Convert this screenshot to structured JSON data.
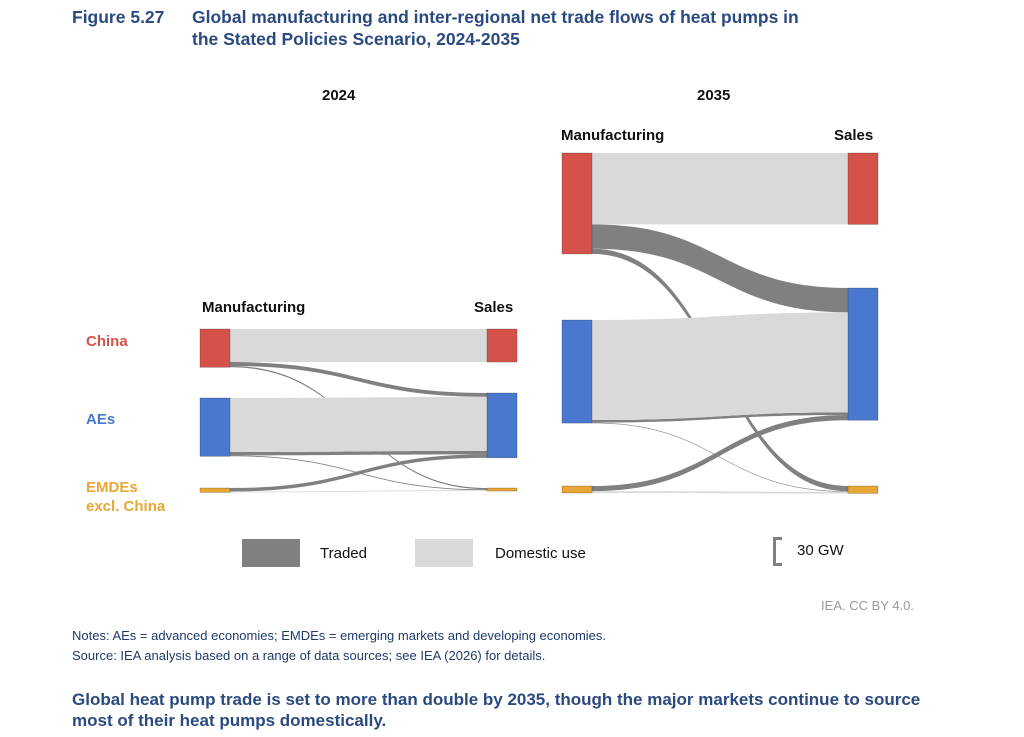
{
  "figure": {
    "number": "Figure 5.27",
    "title_line1": "Global manufacturing and inter-regional net trade flows of heat pumps in",
    "title_line2": "the Stated Policies Scenario, 2024-2035"
  },
  "region_labels": {
    "china": "China",
    "aes": "AEs",
    "emdes_1": "EMDEs",
    "emdes_2": "excl. China"
  },
  "colors": {
    "china": "#d4524a",
    "aes": "#4a78cf",
    "emdes": "#e8a634",
    "traded": "#808080",
    "domestic": "#d9d9d9",
    "title": "#2b4a80"
  },
  "legend": {
    "traded": "Traded",
    "domestic": "Domestic use",
    "scale": "30 GW"
  },
  "credit": "IEA. CC BY 4.0.",
  "notes": "Notes: AEs = advanced economies; EMDEs = emerging markets and developing economies.",
  "source": "Source: IEA analysis based on a range of data sources; see IEA (2026) for details.",
  "takeaway": "Global heat pump trade is set to more than double by 2035, though the major markets continue to source most of their heat pumps domestically.",
  "chart_data": [
    {
      "type": "sankey",
      "title": "2024",
      "left_label": "Manufacturing",
      "right_label": "Sales",
      "unit": "GW",
      "nodes": [
        "China",
        "AEs",
        "EMDEs excl. China"
      ],
      "flows": [
        {
          "from": "China",
          "to": "China",
          "kind": "domestic",
          "value": 38
        },
        {
          "from": "China",
          "to": "AEs",
          "kind": "traded",
          "value": 4.5
        },
        {
          "from": "China",
          "to": "EMDEs excl. China",
          "kind": "traded",
          "value": 1.5
        },
        {
          "from": "AEs",
          "to": "AEs",
          "kind": "domestic",
          "value": 62
        },
        {
          "from": "AEs",
          "to": "AEs",
          "kind": "traded",
          "value": 4
        },
        {
          "from": "AEs",
          "to": "EMDEs excl. China",
          "kind": "traded",
          "value": 1
        },
        {
          "from": "EMDEs excl. China",
          "to": "AEs",
          "kind": "traded",
          "value": 4
        },
        {
          "from": "EMDEs excl. China",
          "to": "EMDEs excl. China",
          "kind": "domestic",
          "value": 1
        }
      ]
    },
    {
      "type": "sankey",
      "title": "2035",
      "left_label": "Manufacturing",
      "right_label": "Sales",
      "unit": "GW",
      "nodes": [
        "China",
        "AEs",
        "EMDEs excl. China"
      ],
      "flows": [
        {
          "from": "China",
          "to": "China",
          "kind": "domestic",
          "value": 82
        },
        {
          "from": "China",
          "to": "AEs",
          "kind": "traded",
          "value": 28
        },
        {
          "from": "China",
          "to": "EMDEs excl. China",
          "kind": "traded",
          "value": 6
        },
        {
          "from": "AEs",
          "to": "AEs",
          "kind": "domestic",
          "value": 115
        },
        {
          "from": "AEs",
          "to": "AEs",
          "kind": "traded",
          "value": 3
        },
        {
          "from": "AEs",
          "to": "EMDEs excl. China",
          "kind": "traded",
          "value": 0.5
        },
        {
          "from": "EMDEs excl. China",
          "to": "AEs",
          "kind": "traded",
          "value": 6
        },
        {
          "from": "EMDEs excl. China",
          "to": "EMDEs excl. China",
          "kind": "domestic",
          "value": 2
        }
      ]
    }
  ]
}
